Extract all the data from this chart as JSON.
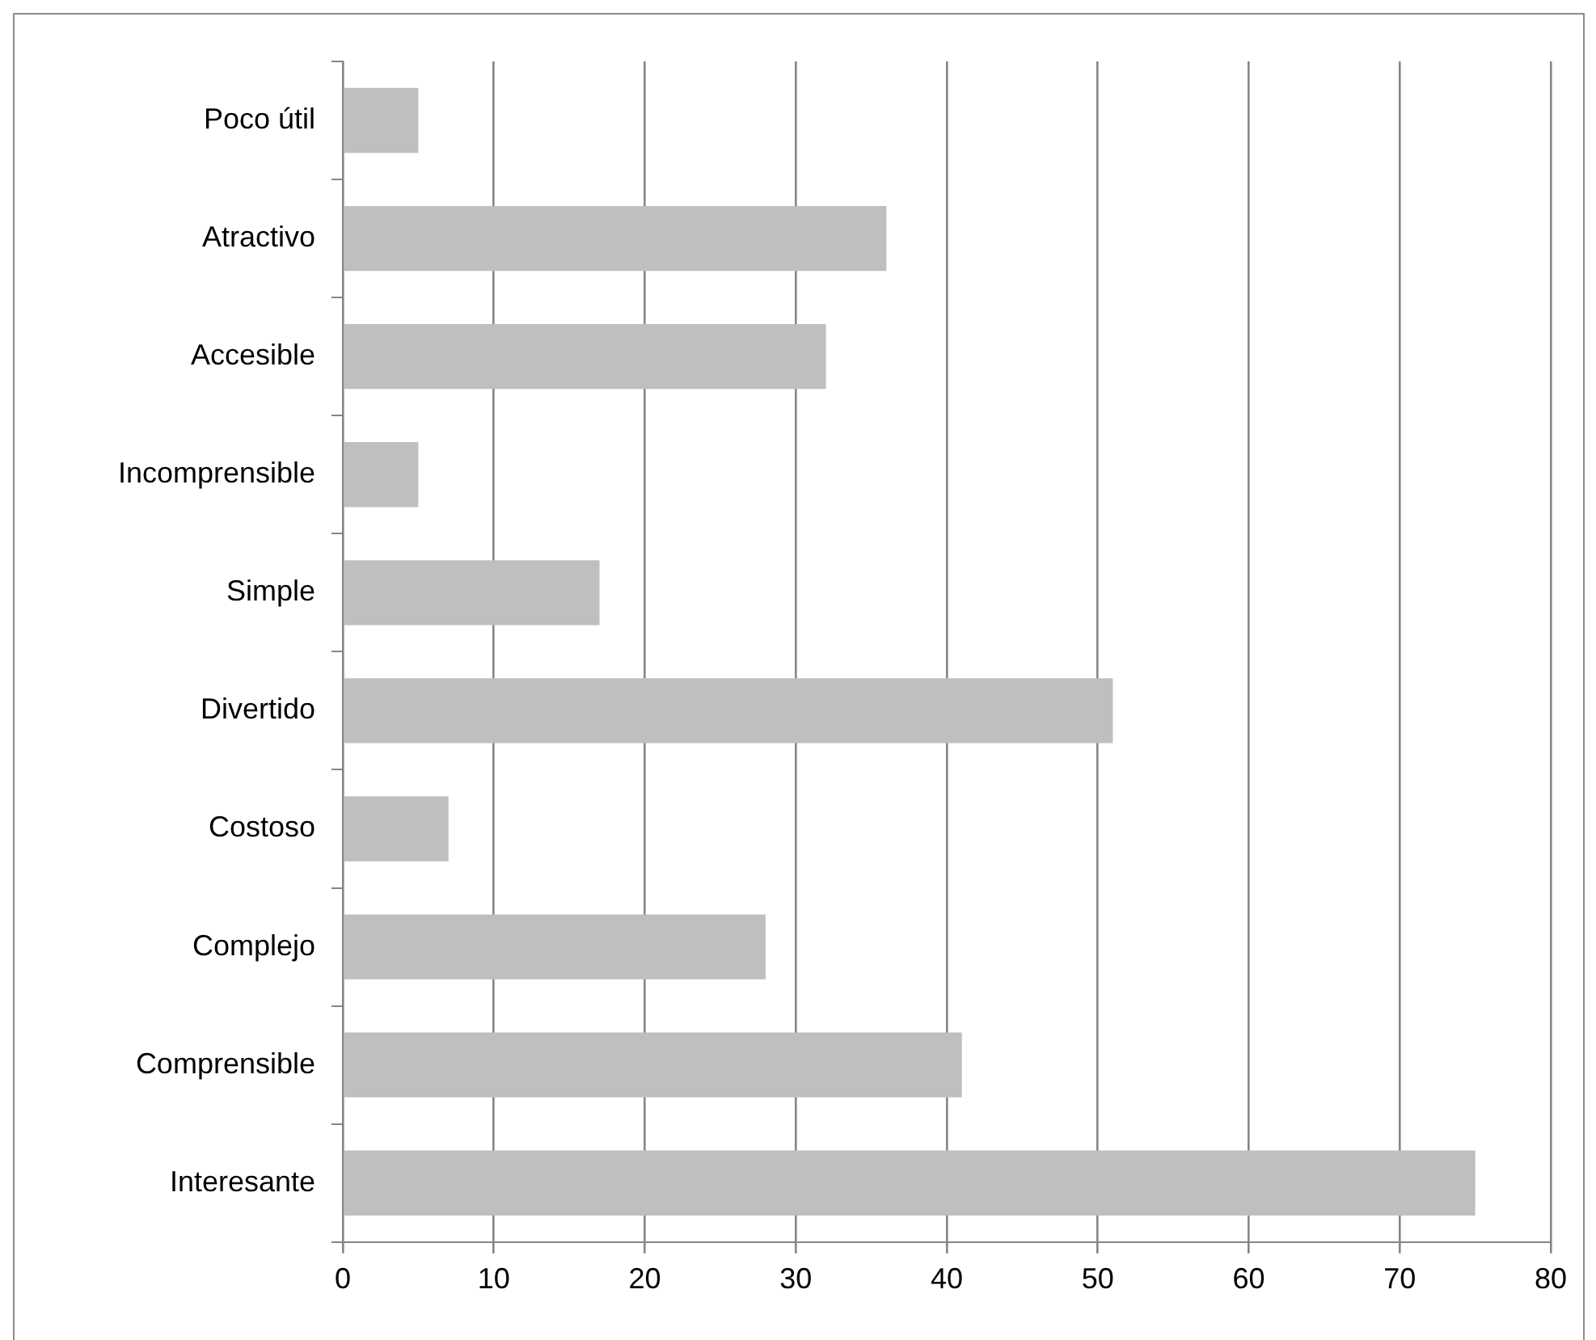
{
  "chart_data": {
    "type": "bar",
    "orientation": "horizontal",
    "categories": [
      "Poco útil",
      "Atractivo",
      "Accesible",
      "Incomprensible",
      "Simple",
      "Divertido",
      "Costoso",
      "Complejo",
      "Comprensible",
      "Interesante"
    ],
    "values": [
      5,
      36,
      32,
      5,
      17,
      51,
      7,
      28,
      41,
      75
    ],
    "color": "#bfbfbf",
    "xlim": [
      0,
      80
    ],
    "xticks": [
      0,
      10,
      20,
      30,
      40,
      50,
      60,
      70,
      80
    ],
    "grid": "x",
    "legend": false
  }
}
